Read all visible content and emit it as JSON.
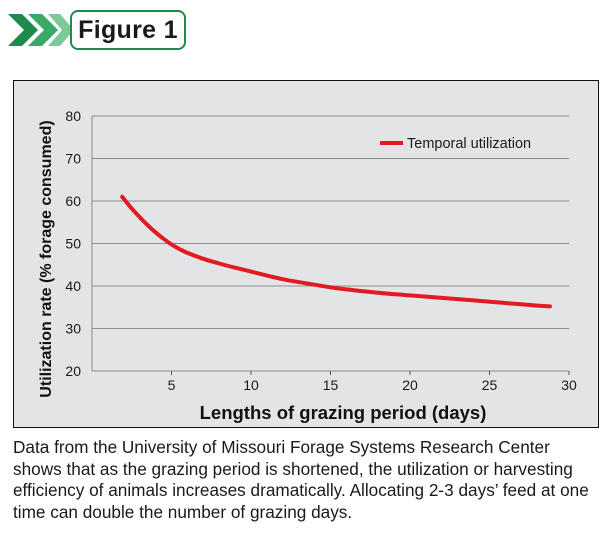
{
  "figure": {
    "label": "Figure 1",
    "accent_color": "#1f8a4c",
    "icon": "chevron-arrows-icon"
  },
  "chart_data": {
    "type": "line",
    "title": "",
    "xlabel": "Lengths of grazing period (days)",
    "ylabel": "Utilization rate (% forage consumed)",
    "xlim": [
      0,
      30
    ],
    "ylim": [
      20,
      80
    ],
    "xticks": [
      5,
      10,
      15,
      20,
      25,
      30
    ],
    "yticks": [
      20,
      30,
      40,
      50,
      60,
      70,
      80
    ],
    "grid": "horizontal",
    "legend_position": "top-right",
    "series": [
      {
        "name": "Temporal utilization",
        "color": "#e21b23",
        "x": [
          1.9,
          2.5,
          3,
          3.5,
          4,
          4.5,
          5,
          5.5,
          6,
          7,
          8,
          9,
          10,
          12,
          14,
          15,
          16,
          18,
          20,
          22,
          24,
          26,
          28,
          28.8
        ],
        "y": [
          61,
          58.2,
          56.2,
          54.3,
          52.6,
          51.1,
          49.8,
          48.7,
          47.8,
          46.4,
          45.3,
          44.3,
          43.4,
          41.6,
          40.3,
          39.7,
          39.2,
          38.4,
          37.8,
          37.2,
          36.6,
          36.0,
          35.4,
          35.2
        ]
      }
    ]
  },
  "caption": "Data from the University of Missouri Forage Systems Research Center shows that as the grazing period is shortened, the utilization or harvesting efficiency of animals increases dramatically. Allocating 2-3 days’ feed at one time can double the number of grazing days."
}
